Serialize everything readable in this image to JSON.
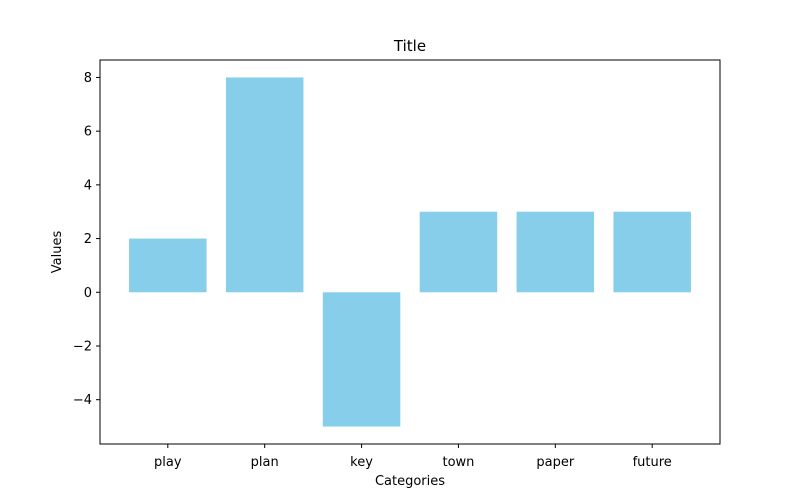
{
  "chart_data": {
    "type": "bar",
    "title": "Title",
    "xlabel": "Categories",
    "ylabel": "Values",
    "categories": [
      "play",
      "plan",
      "key",
      "town",
      "paper",
      "future"
    ],
    "values": [
      2,
      8,
      -5,
      3,
      3,
      3
    ],
    "ylim": [
      -5.65,
      8.65
    ],
    "yticks": [
      -4,
      -2,
      0,
      2,
      4,
      6,
      8
    ],
    "ytick_labels": [
      "−4",
      "−2",
      "0",
      "2",
      "4",
      "6",
      "8"
    ],
    "bar_color": "#87ceeb",
    "grid": false
  }
}
